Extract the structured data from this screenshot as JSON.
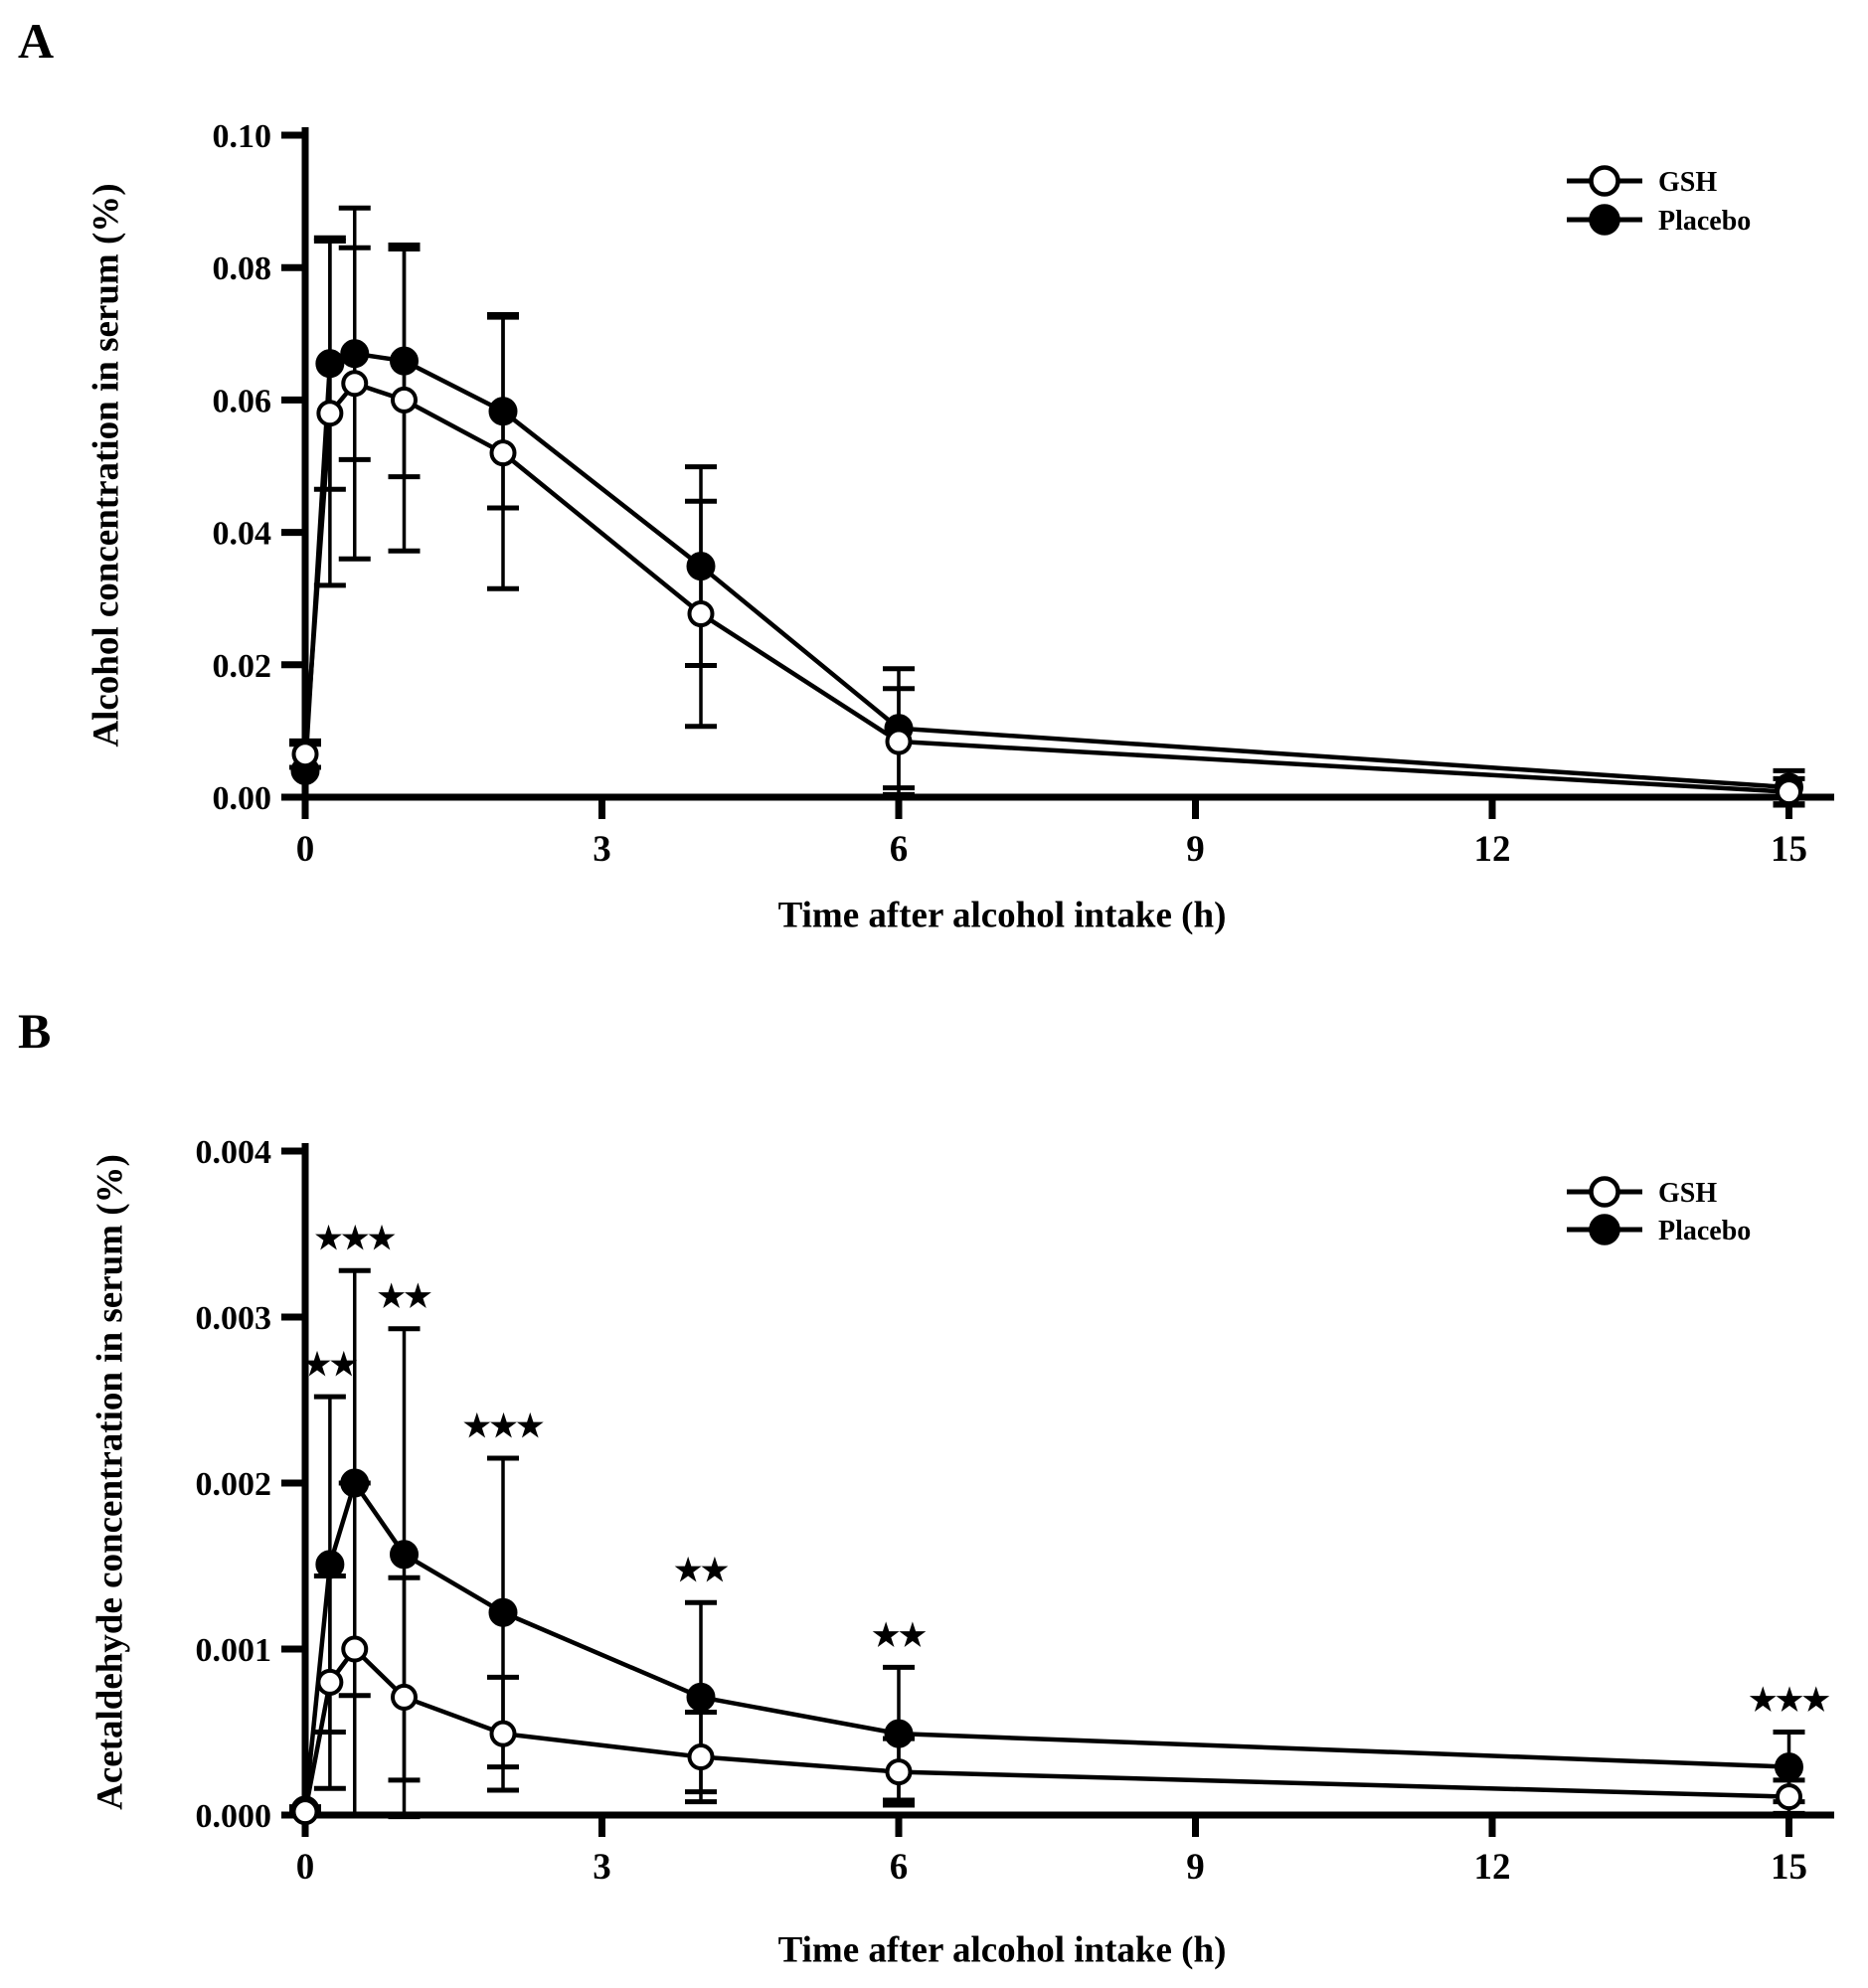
{
  "chart_data": [
    {
      "type": "line",
      "panel_label": "A",
      "xlabel": "Time after alcohol intake (h)",
      "ylabel": "Alcohol concentration in serum (%)",
      "x": [
        0,
        0.25,
        0.5,
        1,
        2,
        4,
        6,
        15
      ],
      "xlim": [
        0,
        15
      ],
      "ylim": [
        0,
        0.1
      ],
      "xticks": {
        "values": [
          0,
          3,
          6,
          9,
          12,
          15
        ],
        "labels": [
          "0",
          "3",
          "6",
          "9",
          "12",
          "15"
        ]
      },
      "yticks": {
        "values": [
          0,
          0.02,
          0.04,
          0.06,
          0.08,
          0.1
        ],
        "labels": [
          "0.00",
          "0.02",
          "0.04",
          "0.06",
          "0.08",
          "0.10"
        ]
      },
      "grid": false,
      "series": [
        {
          "name": "GSH",
          "marker": "open-circle",
          "values": [
            0.0065,
            0.058,
            0.0625,
            0.06,
            0.052,
            0.0277,
            0.0084,
            0.0008
          ],
          "sd": [
            0.002,
            0.026,
            0.0265,
            0.0228,
            0.0205,
            0.017,
            0.008,
            0.002
          ]
        },
        {
          "name": "Placebo",
          "marker": "filled-circle",
          "values": [
            0.004,
            0.0655,
            0.067,
            0.0659,
            0.0583,
            0.0349,
            0.0104,
            0.0015
          ],
          "sd": [
            0.004,
            0.019,
            0.016,
            0.0175,
            0.0146,
            0.015,
            0.009,
            0.0025
          ]
        }
      ],
      "significance": [
        "",
        "",
        "",
        "",
        "",
        "",
        "",
        ""
      ],
      "legend": {
        "position": "top-right",
        "entries": [
          "GSH",
          "Placebo"
        ]
      }
    },
    {
      "type": "line",
      "panel_label": "B",
      "xlabel": "Time after alcohol intake (h)",
      "ylabel": "Acetaldehyde concentration in serum (%)",
      "x": [
        0,
        0.25,
        0.5,
        1,
        2,
        4,
        6,
        15
      ],
      "xlim": [
        0,
        15
      ],
      "ylim": [
        0,
        0.004
      ],
      "xticks": {
        "values": [
          0,
          3,
          6,
          9,
          12,
          15
        ],
        "labels": [
          "0",
          "3",
          "6",
          "9",
          "12",
          "15"
        ]
      },
      "yticks": {
        "values": [
          0,
          0.001,
          0.002,
          0.003,
          0.004
        ],
        "labels": [
          "0.000",
          "0.001",
          "0.002",
          "0.003",
          "0.004"
        ]
      },
      "grid": false,
      "series": [
        {
          "name": "GSH",
          "marker": "open-circle",
          "values": [
            2e-05,
            0.0008,
            0.001,
            0.00071,
            0.00049,
            0.00035,
            0.00026,
            0.00011
          ],
          "sd": [
            1e-05,
            0.00064,
            0.001,
            0.00072,
            0.00034,
            0.00027,
            0.0002,
            0.0001
          ]
        },
        {
          "name": "Placebo",
          "marker": "filled-circle",
          "values": [
            3e-05,
            0.00151,
            0.002,
            0.00157,
            0.00122,
            0.00071,
            0.00049,
            0.00029
          ],
          "sd": [
            2e-05,
            0.00101,
            0.00128,
            0.00136,
            0.00093,
            0.00057,
            0.0004,
            0.00021
          ]
        }
      ],
      "significance": [
        "",
        "**",
        "***",
        "**",
        "***",
        "**",
        "**",
        "***"
      ],
      "legend": {
        "position": "top-right",
        "entries": [
          "GSH",
          "Placebo"
        ]
      }
    }
  ],
  "colors": {
    "foreground": "#000000",
    "background": "#ffffff"
  }
}
